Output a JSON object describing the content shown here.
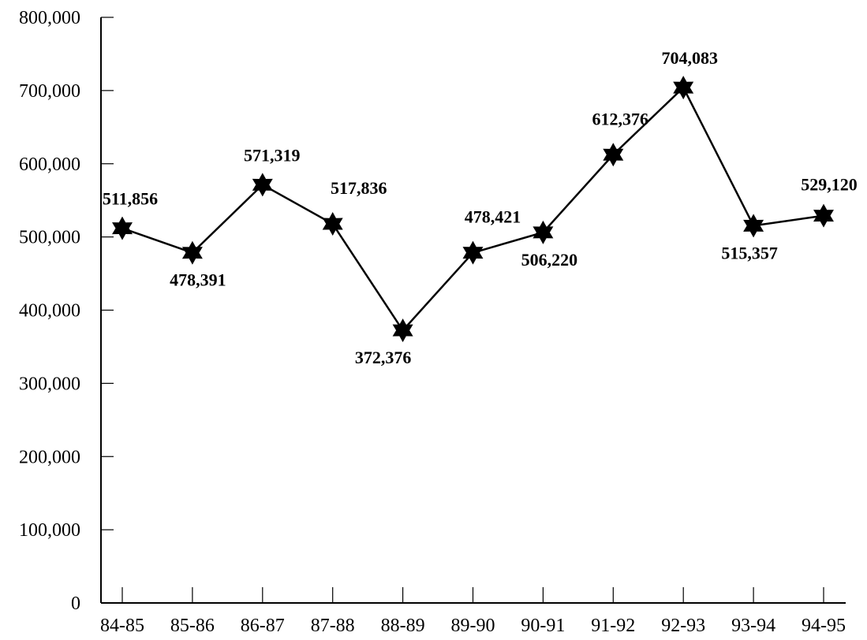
{
  "chart_data": {
    "type": "line",
    "title": "",
    "xlabel": "",
    "ylabel": "",
    "categories": [
      "84-85",
      "85-86",
      "86-87",
      "87-88",
      "88-89",
      "89-90",
      "90-91",
      "91-92",
      "92-93",
      "93-94",
      "94-95"
    ],
    "series": [
      {
        "values": [
          511856,
          478391,
          571319,
          517836,
          372376,
          478421,
          506220,
          612376,
          704083,
          515357,
          529120
        ],
        "marker": "six-pointed-star",
        "color": "#000000"
      }
    ],
    "data_labels": [
      "511,856",
      "478,391",
      "571,319",
      "517,836",
      "372,376",
      "478,421",
      "506,220",
      "612,376",
      "704,083",
      "515,357",
      "529,120"
    ],
    "label_positions": [
      "above",
      "below",
      "above",
      "above",
      "below",
      "above",
      "below",
      "above",
      "above",
      "below",
      "above"
    ],
    "ylim": [
      0,
      800000
    ],
    "yticks": [
      0,
      100000,
      200000,
      300000,
      400000,
      500000,
      600000,
      700000,
      800000
    ],
    "ytick_labels": [
      "0",
      "100,000",
      "200,000",
      "300,000",
      "400,000",
      "500,000",
      "600,000",
      "700,000",
      "800,000"
    ],
    "grid": false,
    "legend": "none"
  }
}
